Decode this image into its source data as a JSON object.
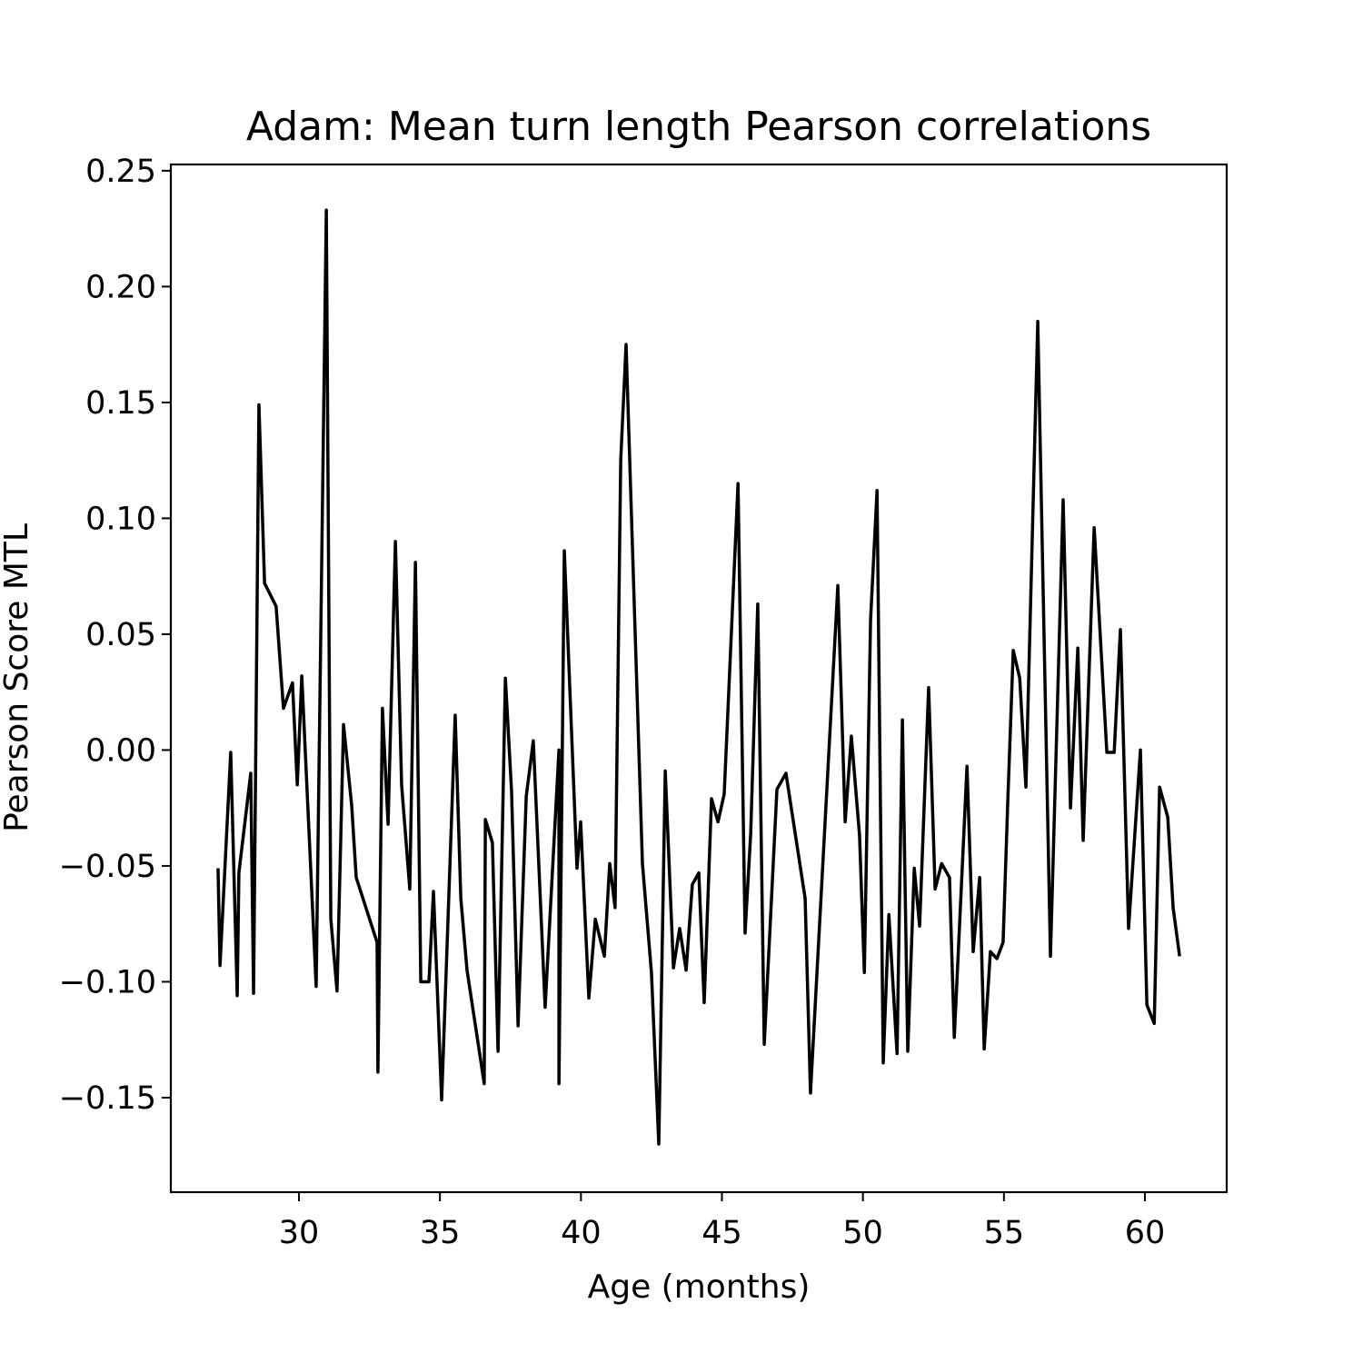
{
  "chart_data": {
    "type": "line",
    "title": "Adam: Mean turn length Pearson correlations",
    "x_label": "Age (months)",
    "y_label": "Pearson Score MTL",
    "xlim": [
      25.456,
      62.9
    ],
    "ylim": [
      -0.1908,
      0.2527
    ],
    "xticks": [
      30,
      35,
      40,
      45,
      50,
      55,
      60
    ],
    "yticks": [
      {
        "value": -0.15,
        "label": "−0.15"
      },
      {
        "value": -0.1,
        "label": "−0.10"
      },
      {
        "value": -0.05,
        "label": "−0.05"
      },
      {
        "value": 0,
        "label": "0.00"
      },
      {
        "value": 0.05,
        "label": "0.05"
      },
      {
        "value": 0.1,
        "label": "0.10"
      },
      {
        "value": 0.15,
        "label": "0.15"
      },
      {
        "value": 0.2,
        "label": "0.20"
      },
      {
        "value": 0.25,
        "label": "0.25"
      }
    ],
    "grid": false,
    "series": [
      {
        "color": "#000000",
        "x": [
          27.13,
          27.2,
          27.58,
          27.81,
          27.87,
          28.29,
          28.39,
          28.58,
          28.78,
          29.19,
          29.45,
          29.77,
          29.94,
          30.1,
          30.61,
          30.97,
          31.13,
          31.35,
          31.58,
          31.87,
          32.03,
          32.77,
          32.8,
          32.96,
          33.16,
          33.42,
          33.64,
          33.93,
          34.13,
          34.32,
          34.61,
          34.77,
          35.06,
          35.54,
          35.74,
          35.96,
          36.57,
          36.61,
          36.86,
          37.06,
          37.32,
          37.54,
          37.77,
          38.06,
          38.31,
          38.73,
          39.22,
          39.22,
          39.41,
          39.86,
          39.99,
          40.28,
          40.51,
          40.83,
          41.02,
          41.21,
          41.41,
          41.6,
          42.18,
          42.5,
          42.76,
          42.99,
          43.28,
          43.5,
          43.73,
          43.95,
          44.18,
          44.37,
          44.63,
          44.86,
          45.08,
          45.57,
          45.82,
          46.02,
          46.27,
          46.5,
          46.95,
          47.27,
          47.95,
          48.14,
          49.11,
          49.37,
          49.59,
          49.88,
          50.05,
          50.27,
          50.5,
          50.72,
          50.92,
          51.21,
          51.4,
          51.59,
          51.82,
          52.01,
          52.33,
          52.56,
          52.79,
          53.07,
          53.24,
          53.69,
          53.91,
          54.14,
          54.3,
          54.52,
          54.75,
          54.97,
          55.14,
          55.33,
          55.56,
          55.78,
          56.2,
          56.65,
          57.1,
          57.36,
          57.62,
          57.81,
          58.2,
          58.65,
          58.91,
          59.13,
          59.42,
          59.84,
          60.07,
          60.33,
          60.52,
          60.81,
          61.0,
          61.23
        ],
        "values": [
          -0.051,
          -0.093,
          -0.001,
          -0.106,
          -0.053,
          -0.01,
          -0.105,
          0.149,
          0.072,
          0.062,
          0.018,
          0.029,
          -0.015,
          0.032,
          -0.102,
          0.233,
          -0.073,
          -0.104,
          0.011,
          -0.024,
          -0.055,
          -0.083,
          -0.139,
          0.018,
          -0.032,
          0.09,
          -0.015,
          -0.06,
          0.081,
          -0.1,
          -0.1,
          -0.061,
          -0.151,
          0.015,
          -0.064,
          -0.095,
          -0.144,
          -0.03,
          -0.04,
          -0.13,
          0.031,
          -0.018,
          -0.119,
          -0.02,
          0.004,
          -0.111,
          0.0,
          -0.144,
          0.086,
          -0.051,
          -0.031,
          -0.107,
          -0.073,
          -0.089,
          -0.049,
          -0.068,
          0.125,
          0.175,
          -0.049,
          -0.096,
          -0.17,
          -0.009,
          -0.094,
          -0.077,
          -0.095,
          -0.058,
          -0.053,
          -0.109,
          -0.021,
          -0.031,
          -0.019,
          0.115,
          -0.079,
          -0.036,
          0.063,
          -0.127,
          -0.017,
          -0.01,
          -0.064,
          -0.148,
          0.071,
          -0.031,
          0.006,
          -0.037,
          -0.096,
          0.056,
          0.112,
          -0.135,
          -0.071,
          -0.131,
          0.013,
          -0.13,
          -0.051,
          -0.076,
          0.027,
          -0.06,
          -0.049,
          -0.055,
          -0.124,
          -0.007,
          -0.087,
          -0.055,
          -0.129,
          -0.087,
          -0.09,
          -0.083,
          -0.021,
          0.043,
          0.031,
          -0.016,
          0.185,
          -0.089,
          0.108,
          -0.025,
          0.044,
          -0.039,
          0.096,
          -0.001,
          -0.001,
          0.052,
          -0.077,
          0.0,
          -0.11,
          -0.118,
          -0.016,
          -0.029,
          -0.068,
          -0.089
        ]
      }
    ]
  }
}
